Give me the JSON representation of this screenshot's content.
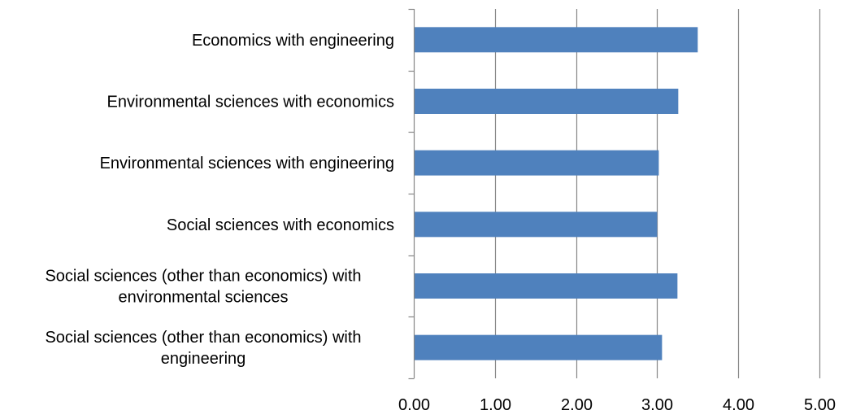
{
  "chart_data": {
    "type": "bar",
    "orientation": "horizontal",
    "categories": [
      [
        "Economics with engineering"
      ],
      [
        "Environmental sciences with economics"
      ],
      [
        "Environmental sciences with engineering"
      ],
      [
        "Social sciences with economics"
      ],
      [
        "Social sciences (other than economics) with",
        "environmental sciences"
      ],
      [
        "Social sciences (other than economics) with",
        "engineering"
      ]
    ],
    "values": [
      3.5,
      3.26,
      3.02,
      3.0,
      3.25,
      3.06
    ],
    "xlim": [
      0,
      5
    ],
    "xticks": [
      "0.00",
      "1.00",
      "2.00",
      "3.00",
      "4.00",
      "5.00"
    ],
    "grid": "vertical",
    "bar_color": "#4F81BD",
    "grid_color": "#878787"
  }
}
